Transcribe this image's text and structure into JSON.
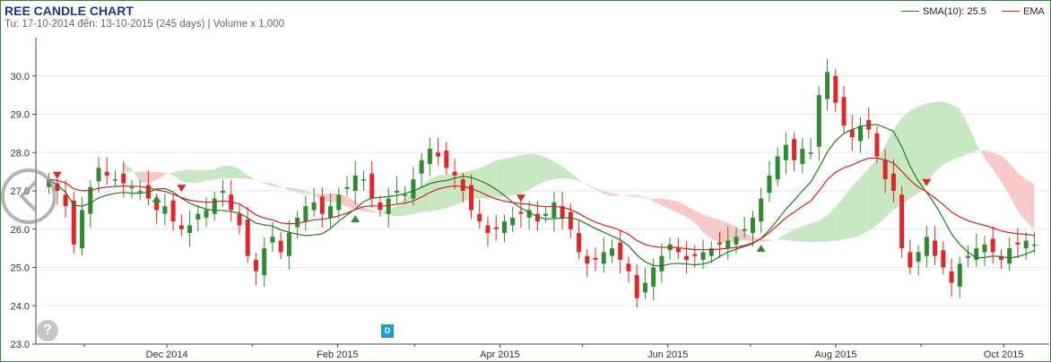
{
  "header": {
    "title": "REE CANDLE CHART",
    "subtitle": "Tu: 17-10-2014 đến: 13-10-2015 (245 days) | Volume x 1,000"
  },
  "legend": {
    "sma_label": "SMA(10): 25.5",
    "ema_label": "EMA"
  },
  "badges": {
    "help": "?",
    "dividend": "D"
  },
  "icons": {
    "zoom": "back-arrow-circle-icon",
    "help": "question-mark-icon"
  },
  "colors": {
    "up": "#2e8b2e",
    "down": "#e02626",
    "sma": "#1e7b1e",
    "ema": "#d42020",
    "cloud_bull": "#c8e8c4",
    "cloud_bear": "#f7c9c9",
    "axis_text": "#333333",
    "title": "#1a3a8a",
    "dividend": "#1e9bd7"
  },
  "chart_data": {
    "type": "candlestick",
    "ylim": [
      23.0,
      31.0
    ],
    "y_ticks": [
      "23.0",
      "24.0",
      "25.0",
      "26.0",
      "27.0",
      "28.0",
      "29.0",
      "30.0"
    ],
    "x_labels": [
      {
        "label": "Dec 2014",
        "date": "2014-12-01"
      },
      {
        "label": "Feb 2015",
        "date": "2015-02-01"
      },
      {
        "label": "Apr 2015",
        "date": "2015-04-01"
      },
      {
        "label": "Jun 2015",
        "date": "2015-06-01"
      },
      {
        "label": "Aug 2015",
        "date": "2015-08-01"
      },
      {
        "label": "Oct 2015",
        "date": "2015-10-01"
      }
    ],
    "date_range": [
      "2014-10-17",
      "2015-10-13"
    ],
    "close": [
      27.3,
      27.0,
      26.6,
      25.6,
      26.5,
      27.1,
      27.6,
      27.4,
      27.3,
      27.2,
      27.1,
      27.0,
      26.8,
      26.5,
      26.6,
      26.2,
      26.0,
      26.1,
      26.4,
      26.5,
      26.8,
      27.0,
      26.5,
      26.1,
      25.3,
      24.9,
      25.5,
      25.8,
      25.4,
      25.9,
      26.3,
      26.6,
      26.7,
      26.4,
      26.6,
      26.9,
      27.1,
      27.4,
      27.3,
      26.8,
      26.5,
      26.8,
      27.0,
      26.9,
      27.3,
      27.8,
      28.1,
      27.9,
      27.6,
      27.4,
      27.0,
      26.5,
      26.2,
      25.9,
      26.0,
      26.2,
      26.3,
      26.4,
      26.5,
      26.2,
      26.4,
      26.7,
      26.3,
      26.0,
      25.4,
      25.1,
      25.2,
      25.4,
      25.5,
      25.2,
      24.9,
      24.2,
      24.6,
      25.0,
      25.3,
      25.6,
      25.4,
      25.2,
      25.3,
      25.4,
      25.5,
      25.6,
      25.7,
      25.8,
      26.0,
      26.3,
      26.8,
      27.4,
      27.9,
      28.2,
      27.8,
      28.1,
      28.0,
      29.5,
      30.1,
      29.3,
      28.7,
      28.4,
      28.7,
      28.6,
      27.9,
      27.3,
      27.0,
      25.5,
      25.0,
      25.4,
      25.8,
      25.3,
      25.0,
      24.6,
      25.1,
      25.3,
      25.5,
      25.6,
      25.4,
      25.2,
      25.5,
      25.6,
      25.7,
      25.6
    ],
    "sma_period": 10,
    "ema_period": 20,
    "notes": [
      "Ichimoku-style cloud bands in green and pink",
      "triangle markers at crossovers"
    ]
  }
}
